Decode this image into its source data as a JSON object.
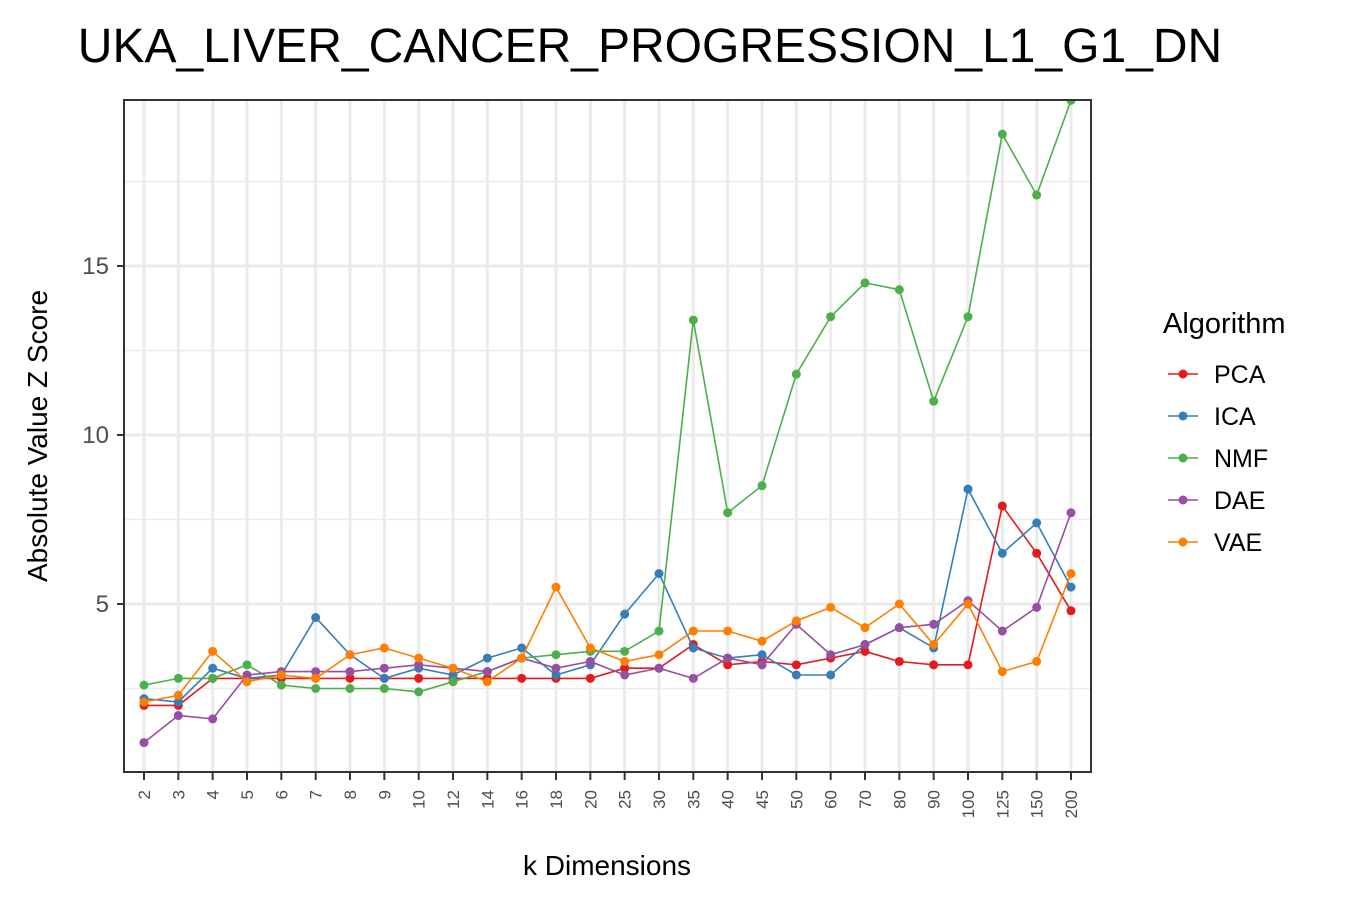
{
  "chart_data": {
    "type": "line",
    "title": "UKA_LIVER_CANCER_PROGRESSION_L1_G1_DN",
    "xlabel": "k Dimensions",
    "ylabel": "Absolute Value Z Score",
    "categories": [
      "2",
      "3",
      "4",
      "5",
      "6",
      "7",
      "8",
      "9",
      "10",
      "12",
      "14",
      "16",
      "18",
      "20",
      "25",
      "30",
      "35",
      "40",
      "45",
      "50",
      "60",
      "70",
      "80",
      "90",
      "100",
      "125",
      "150",
      "200"
    ],
    "y_ticks": [
      5,
      10,
      15
    ],
    "ylim": [
      0,
      20
    ],
    "grid": true,
    "legend": {
      "title": "Algorithm",
      "position": "right"
    },
    "series": [
      {
        "name": "PCA",
        "color": "#e41a1c",
        "values": [
          2.0,
          2.0,
          2.8,
          2.8,
          2.8,
          2.8,
          2.8,
          2.8,
          2.8,
          2.8,
          2.8,
          2.8,
          2.8,
          2.8,
          3.1,
          3.1,
          3.8,
          3.2,
          3.3,
          3.2,
          3.4,
          3.6,
          3.3,
          3.2,
          3.2,
          7.9,
          6.5,
          4.8
        ]
      },
      {
        "name": "ICA",
        "color": "#377eb8",
        "values": [
          2.2,
          2.1,
          3.1,
          2.8,
          2.9,
          4.6,
          3.5,
          2.8,
          3.1,
          2.9,
          3.4,
          3.7,
          2.9,
          3.2,
          4.7,
          5.9,
          3.7,
          3.4,
          3.5,
          2.9,
          2.9,
          3.8,
          4.3,
          3.7,
          8.4,
          6.5,
          7.4,
          5.5
        ]
      },
      {
        "name": "NMF",
        "color": "#4daf4a",
        "values": [
          2.6,
          2.8,
          2.8,
          3.2,
          2.6,
          2.5,
          2.5,
          2.5,
          2.4,
          2.7,
          3.0,
          3.4,
          3.5,
          3.6,
          3.6,
          4.2,
          13.4,
          7.7,
          8.5,
          11.8,
          13.5,
          14.5,
          14.3,
          11.0,
          13.5,
          18.9,
          17.1,
          19.9
        ]
      },
      {
        "name": "DAE",
        "color": "#984ea3",
        "values": [
          0.9,
          1.7,
          1.6,
          2.9,
          3.0,
          3.0,
          3.0,
          3.1,
          3.2,
          3.1,
          3.0,
          3.4,
          3.1,
          3.3,
          2.9,
          3.1,
          2.8,
          3.4,
          3.2,
          4.4,
          3.5,
          3.8,
          4.3,
          4.4,
          5.1,
          4.2,
          4.9,
          7.7
        ]
      },
      {
        "name": "VAE",
        "color": "#ff7f00",
        "values": [
          2.1,
          2.3,
          3.6,
          2.7,
          2.9,
          2.8,
          3.5,
          3.7,
          3.4,
          3.1,
          2.7,
          3.4,
          5.5,
          3.7,
          3.3,
          3.5,
          4.2,
          4.2,
          3.9,
          4.5,
          4.9,
          4.3,
          5.0,
          3.8,
          5.0,
          3.0,
          3.3,
          5.9
        ]
      }
    ]
  }
}
